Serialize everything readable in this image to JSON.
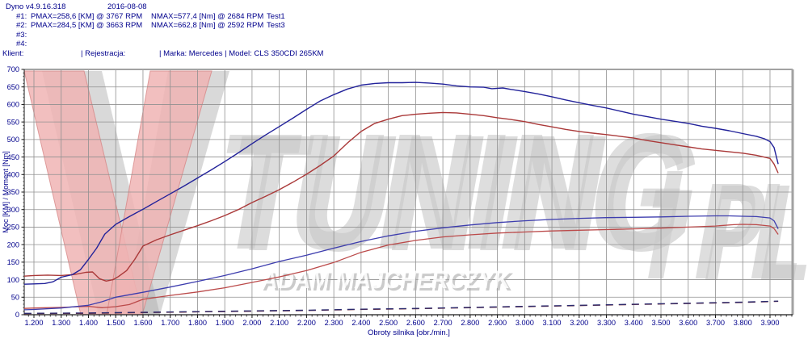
{
  "header": {
    "app_title": "Dyno v4.9.16.318",
    "date": "2016-08-08",
    "runs": [
      {
        "index": "#1:",
        "pmax": "PMAX=258,6 [KM] @ 3767 RPM",
        "nmax": "NMAX=577,4 [Nm] @ 2684 RPM",
        "test": "Test1"
      },
      {
        "index": "#2:",
        "pmax": "PMAX=284,5 [KM] @ 3663 RPM",
        "nmax": "NMAX=662,8 [Nm] @ 2592 RPM",
        "test": "Test3"
      },
      {
        "index": "#3:",
        "pmax": "",
        "nmax": "",
        "test": ""
      },
      {
        "index": "#4:",
        "pmax": "",
        "nmax": "",
        "test": ""
      }
    ],
    "client_label": "Klient:",
    "registration_label": "| Rejestracja:",
    "vehicle_label": "| Marka: Mercedes | Model: CLS 350CDI 265KM"
  },
  "watermark": {
    "brand_main": "TUNING",
    "brand_suffix": "PL",
    "owner": "ADAM MAJCHERCZYK"
  },
  "colors": {
    "header_text": "#00008c",
    "axis_text": "#00008c",
    "grid": "#909090",
    "plot_border_gray": "#a2a2a2",
    "axis_line": "#1a1a1a",
    "torque_test3": "#22229a",
    "torque_test1": "#aa3939",
    "power_test3": "#3d3dae",
    "power_test1": "#bb4a4a",
    "loss_blue": "#2a2a6e",
    "loss_red": "#6e2a3a",
    "watermark_pink": "#f0b4b4",
    "watermark_pink_edge": "#d98989",
    "watermark_gray": "#c9c9c9",
    "watermark_shadow": "#aaaaaa",
    "owner_text": "#ffffff"
  },
  "chart_data": {
    "type": "line",
    "title": "",
    "xlabel": "Obroty silnika [obr./min.]",
    "ylabel": "Moc [KM] / Moment [Nm]",
    "xlim": [
      1164,
      3983
    ],
    "ylim": [
      0,
      700
    ],
    "x_ticks": [
      1200,
      1300,
      1400,
      1500,
      1600,
      1700,
      1800,
      1900,
      2000,
      2100,
      2200,
      2300,
      2400,
      2500,
      2600,
      2700,
      2800,
      2900,
      3000,
      3100,
      3200,
      3300,
      3400,
      3500,
      3600,
      3700,
      3800,
      3900
    ],
    "x_tick_format": "thousands-dot",
    "y_ticks": [
      0,
      50,
      100,
      150,
      200,
      250,
      300,
      350,
      400,
      450,
      500,
      550,
      600,
      650,
      700
    ],
    "grid": true,
    "legend": "none",
    "runs": [
      {
        "name": "Test1",
        "pmax_km": 258.6,
        "pmax_rpm": 3767,
        "nmax_nm": 577.4,
        "nmax_rpm": 2684
      },
      {
        "name": "Test3",
        "pmax_km": 284.5,
        "pmax_rpm": 3663,
        "nmax_nm": 662.8,
        "nmax_rpm": 2592
      }
    ],
    "series": [
      {
        "key": "loss-test1",
        "name": "Test1 loss [KM]",
        "unit": "KM",
        "style": "dashed",
        "color_ref": "loss_red",
        "width": 1.3,
        "points": [
          [
            1164,
            3
          ],
          [
            1400,
            4
          ],
          [
            1600,
            6
          ],
          [
            1800,
            8
          ],
          [
            2000,
            10
          ],
          [
            2200,
            12
          ],
          [
            2400,
            15
          ],
          [
            2600,
            17
          ],
          [
            2800,
            20
          ],
          [
            3000,
            23
          ],
          [
            3200,
            26
          ],
          [
            3400,
            29
          ],
          [
            3600,
            32
          ],
          [
            3800,
            35
          ],
          [
            3930,
            38
          ]
        ]
      },
      {
        "key": "loss-test3",
        "name": "Test3 loss [KM]",
        "unit": "KM",
        "style": "dashed",
        "color_ref": "loss_blue",
        "width": 1.3,
        "points": [
          [
            1164,
            4
          ],
          [
            1400,
            5
          ],
          [
            1600,
            7
          ],
          [
            1800,
            9
          ],
          [
            2000,
            11
          ],
          [
            2200,
            13
          ],
          [
            2400,
            16
          ],
          [
            2600,
            18
          ],
          [
            2800,
            21
          ],
          [
            3000,
            24
          ],
          [
            3200,
            27
          ],
          [
            3400,
            30
          ],
          [
            3600,
            33
          ],
          [
            3800,
            36
          ],
          [
            3930,
            39
          ]
        ]
      },
      {
        "key": "power-test1",
        "name": "Test1 power [KM]",
        "unit": "KM",
        "style": "solid",
        "color_ref": "power_test1",
        "width": 1.3,
        "points": [
          [
            1164,
            18
          ],
          [
            1200,
            19
          ],
          [
            1300,
            21
          ],
          [
            1400,
            24
          ],
          [
            1450,
            20
          ],
          [
            1500,
            23
          ],
          [
            1550,
            29
          ],
          [
            1600,
            44
          ],
          [
            1700,
            55
          ],
          [
            1800,
            65
          ],
          [
            1900,
            77
          ],
          [
            2000,
            92
          ],
          [
            2100,
            108
          ],
          [
            2200,
            126
          ],
          [
            2300,
            149
          ],
          [
            2400,
            178
          ],
          [
            2500,
            199
          ],
          [
            2600,
            212
          ],
          [
            2700,
            222
          ],
          [
            2800,
            228
          ],
          [
            2900,
            233
          ],
          [
            3000,
            236
          ],
          [
            3100,
            239
          ],
          [
            3200,
            241
          ],
          [
            3300,
            243
          ],
          [
            3400,
            245
          ],
          [
            3500,
            247
          ],
          [
            3600,
            250
          ],
          [
            3700,
            253
          ],
          [
            3767,
            257
          ],
          [
            3800,
            258
          ],
          [
            3850,
            257
          ],
          [
            3900,
            253
          ],
          [
            3915,
            246
          ],
          [
            3930,
            229
          ]
        ]
      },
      {
        "key": "power-test3",
        "name": "Test3 power [KM]",
        "unit": "KM",
        "style": "solid",
        "color_ref": "power_test3",
        "width": 1.3,
        "points": [
          [
            1164,
            14
          ],
          [
            1200,
            15
          ],
          [
            1300,
            19
          ],
          [
            1400,
            27
          ],
          [
            1450,
            37
          ],
          [
            1500,
            50
          ],
          [
            1600,
            64
          ],
          [
            1700,
            79
          ],
          [
            1800,
            95
          ],
          [
            1900,
            112
          ],
          [
            2000,
            131
          ],
          [
            2100,
            152
          ],
          [
            2200,
            170
          ],
          [
            2300,
            190
          ],
          [
            2400,
            209
          ],
          [
            2500,
            225
          ],
          [
            2600,
            238
          ],
          [
            2700,
            248
          ],
          [
            2800,
            256
          ],
          [
            2900,
            263
          ],
          [
            3000,
            268
          ],
          [
            3100,
            272
          ],
          [
            3200,
            275
          ],
          [
            3300,
            277
          ],
          [
            3400,
            278
          ],
          [
            3500,
            279
          ],
          [
            3600,
            281
          ],
          [
            3700,
            282
          ],
          [
            3750,
            282
          ],
          [
            3800,
            281
          ],
          [
            3850,
            280
          ],
          [
            3900,
            276
          ],
          [
            3915,
            268
          ],
          [
            3930,
            245
          ]
        ]
      },
      {
        "key": "torque-test1",
        "name": "Test1 torque [Nm]",
        "unit": "Nm",
        "style": "solid",
        "color_ref": "torque_test1",
        "width": 1.4,
        "points": [
          [
            1164,
            110
          ],
          [
            1200,
            112
          ],
          [
            1250,
            113
          ],
          [
            1300,
            112
          ],
          [
            1350,
            115
          ],
          [
            1390,
            121
          ],
          [
            1415,
            122
          ],
          [
            1440,
            103
          ],
          [
            1465,
            96
          ],
          [
            1490,
            100
          ],
          [
            1510,
            109
          ],
          [
            1540,
            126
          ],
          [
            1570,
            158
          ],
          [
            1600,
            196
          ],
          [
            1650,
            214
          ],
          [
            1700,
            228
          ],
          [
            1750,
            241
          ],
          [
            1800,
            254
          ],
          [
            1850,
            268
          ],
          [
            1900,
            283
          ],
          [
            1950,
            300
          ],
          [
            2000,
            320
          ],
          [
            2050,
            338
          ],
          [
            2100,
            357
          ],
          [
            2150,
            378
          ],
          [
            2200,
            401
          ],
          [
            2250,
            426
          ],
          [
            2300,
            453
          ],
          [
            2350,
            490
          ],
          [
            2400,
            523
          ],
          [
            2450,
            546
          ],
          [
            2500,
            558
          ],
          [
            2550,
            568
          ],
          [
            2600,
            572
          ],
          [
            2650,
            575
          ],
          [
            2700,
            577
          ],
          [
            2750,
            576
          ],
          [
            2800,
            572
          ],
          [
            2850,
            568
          ],
          [
            2900,
            562
          ],
          [
            2950,
            557
          ],
          [
            3000,
            551
          ],
          [
            3050,
            543
          ],
          [
            3100,
            536
          ],
          [
            3150,
            529
          ],
          [
            3200,
            523
          ],
          [
            3250,
            518
          ],
          [
            3300,
            514
          ],
          [
            3350,
            509
          ],
          [
            3400,
            504
          ],
          [
            3450,
            497
          ],
          [
            3500,
            491
          ],
          [
            3550,
            485
          ],
          [
            3600,
            479
          ],
          [
            3650,
            473
          ],
          [
            3700,
            469
          ],
          [
            3750,
            465
          ],
          [
            3800,
            461
          ],
          [
            3850,
            455
          ],
          [
            3900,
            446
          ],
          [
            3915,
            430
          ],
          [
            3930,
            404
          ]
        ]
      },
      {
        "key": "torque-test3",
        "name": "Test3 torque [Nm]",
        "unit": "Nm",
        "style": "solid",
        "color_ref": "torque_test3",
        "width": 1.4,
        "points": [
          [
            1164,
            87
          ],
          [
            1200,
            88
          ],
          [
            1240,
            89
          ],
          [
            1270,
            94
          ],
          [
            1300,
            107
          ],
          [
            1340,
            114
          ],
          [
            1370,
            128
          ],
          [
            1400,
            158
          ],
          [
            1430,
            190
          ],
          [
            1460,
            230
          ],
          [
            1500,
            258
          ],
          [
            1550,
            280
          ],
          [
            1600,
            301
          ],
          [
            1650,
            323
          ],
          [
            1700,
            345
          ],
          [
            1750,
            367
          ],
          [
            1800,
            390
          ],
          [
            1850,
            413
          ],
          [
            1900,
            437
          ],
          [
            1950,
            462
          ],
          [
            2000,
            488
          ],
          [
            2050,
            513
          ],
          [
            2100,
            537
          ],
          [
            2150,
            561
          ],
          [
            2200,
            586
          ],
          [
            2250,
            610
          ],
          [
            2300,
            628
          ],
          [
            2350,
            644
          ],
          [
            2400,
            655
          ],
          [
            2450,
            660
          ],
          [
            2500,
            662
          ],
          [
            2550,
            662
          ],
          [
            2600,
            663
          ],
          [
            2650,
            661
          ],
          [
            2700,
            658
          ],
          [
            2750,
            653
          ],
          [
            2800,
            650
          ],
          [
            2850,
            649
          ],
          [
            2880,
            645
          ],
          [
            2920,
            647
          ],
          [
            2950,
            643
          ],
          [
            3000,
            637
          ],
          [
            3050,
            630
          ],
          [
            3100,
            622
          ],
          [
            3150,
            613
          ],
          [
            3200,
            605
          ],
          [
            3250,
            597
          ],
          [
            3300,
            590
          ],
          [
            3350,
            581
          ],
          [
            3400,
            572
          ],
          [
            3450,
            565
          ],
          [
            3500,
            558
          ],
          [
            3550,
            552
          ],
          [
            3600,
            546
          ],
          [
            3650,
            538
          ],
          [
            3700,
            532
          ],
          [
            3750,
            525
          ],
          [
            3800,
            517
          ],
          [
            3850,
            509
          ],
          [
            3880,
            502
          ],
          [
            3900,
            494
          ],
          [
            3915,
            477
          ],
          [
            3930,
            430
          ]
        ]
      }
    ]
  }
}
